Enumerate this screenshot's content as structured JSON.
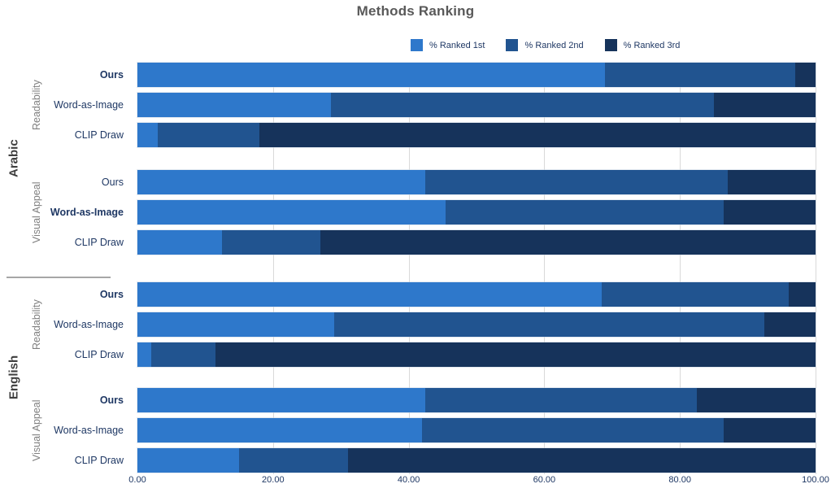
{
  "title": "Methods Ranking",
  "legend": {
    "items": [
      {
        "label": "% Ranked 1st",
        "color": "#2E78CB"
      },
      {
        "label": "% Ranked 2nd",
        "color": "#215490"
      },
      {
        "label": "% Ranked 3rd",
        "color": "#16335B"
      }
    ]
  },
  "x_axis": {
    "tick_labels": [
      "0.00",
      "20.00",
      "40.00",
      "60.00",
      "80.00",
      "100.00"
    ],
    "min": 0,
    "max": 100
  },
  "chart_data": {
    "type": "bar",
    "orientation": "horizontal",
    "stacked": true,
    "title": "Methods Ranking",
    "xlim": [
      0,
      100
    ],
    "grid": true,
    "legend_position": "top",
    "series_names": [
      "% Ranked 1st",
      "% Ranked 2nd",
      "% Ranked 3rd"
    ],
    "series_colors": [
      "#2E78CB",
      "#215490",
      "#16335B"
    ],
    "language_blocks": [
      {
        "label": "Arabic",
        "group_indexes": [
          0,
          1
        ]
      },
      {
        "label": "English",
        "group_indexes": [
          2,
          3
        ]
      }
    ],
    "groups": [
      {
        "language": "Arabic",
        "aspect": "Readability",
        "rows": [
          {
            "method": "Ours",
            "bold": true,
            "values": [
              69,
              28,
              3
            ]
          },
          {
            "method": "Word-as-Image",
            "bold": false,
            "values": [
              28.5,
              56.5,
              15
            ]
          },
          {
            "method": "CLIP Draw",
            "bold": false,
            "values": [
              3,
              15,
              82
            ]
          }
        ]
      },
      {
        "language": "Arabic",
        "aspect": "Visual Appeal",
        "rows": [
          {
            "method": "Ours",
            "bold": false,
            "values": [
              42.5,
              44.5,
              13
            ]
          },
          {
            "method": "Word-as-Image",
            "bold": true,
            "values": [
              45.5,
              41,
              13.5
            ]
          },
          {
            "method": "CLIP Draw",
            "bold": false,
            "values": [
              12.5,
              14.5,
              73
            ]
          }
        ]
      },
      {
        "language": "English",
        "aspect": "Readability",
        "rows": [
          {
            "method": "Ours",
            "bold": true,
            "values": [
              68.5,
              27.5,
              4
            ]
          },
          {
            "method": "Word-as-Image",
            "bold": false,
            "values": [
              29,
              63.5,
              7.5
            ]
          },
          {
            "method": "CLIP Draw",
            "bold": false,
            "values": [
              2,
              9.5,
              88.5
            ]
          }
        ]
      },
      {
        "language": "English",
        "aspect": "Visual Appeal",
        "rows": [
          {
            "method": "Ours",
            "bold": true,
            "values": [
              42.5,
              40,
              17.5
            ]
          },
          {
            "method": "Word-as-Image",
            "bold": false,
            "values": [
              42,
              44.5,
              13.5
            ]
          },
          {
            "method": "CLIP Draw",
            "bold": false,
            "values": [
              15,
              16,
              69
            ]
          }
        ]
      }
    ]
  }
}
